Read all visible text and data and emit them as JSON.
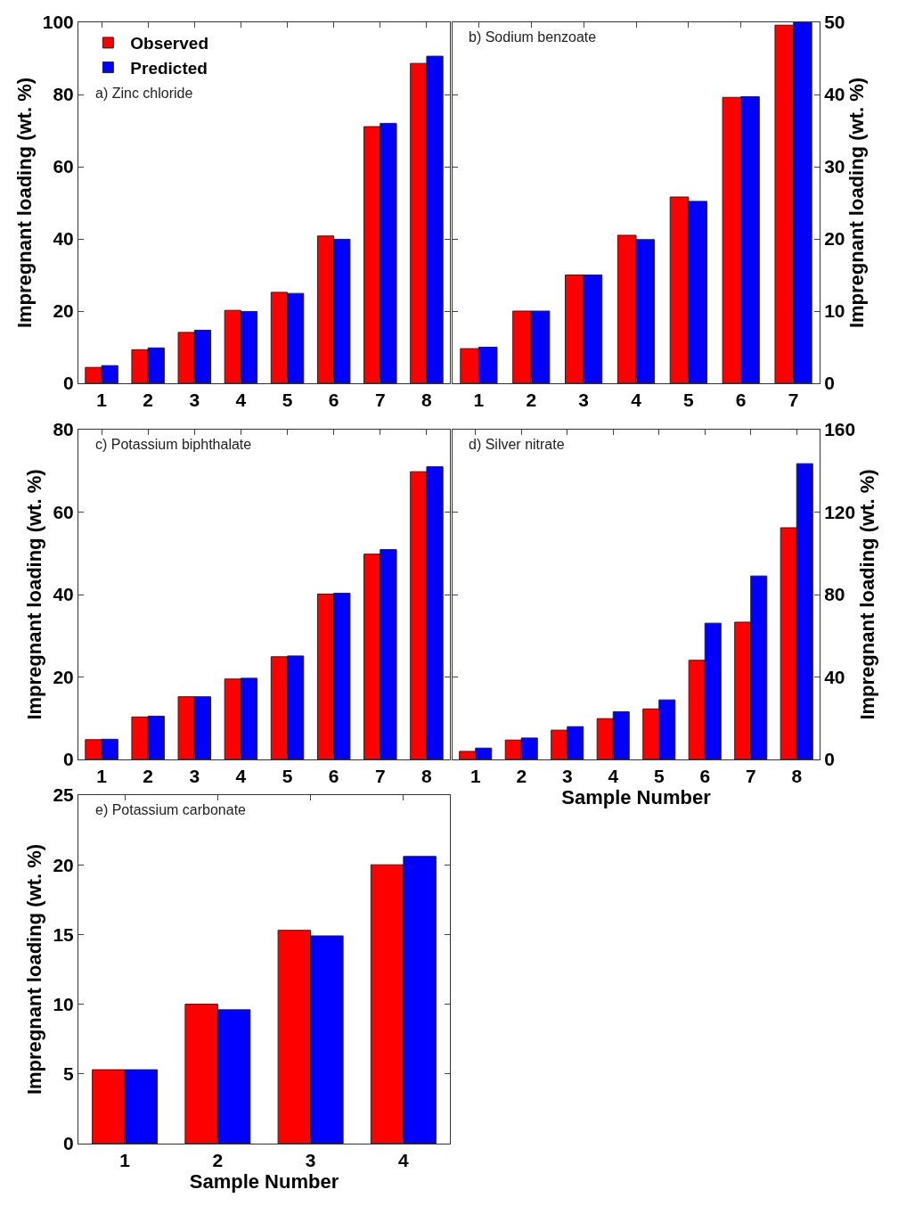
{
  "chart_data": [
    {
      "type": "bar",
      "categories": [
        "1",
        "2",
        "3",
        "4",
        "5",
        "6",
        "7",
        "8"
      ],
      "ylabel": "Impregnant loading (wt. %)",
      "ylim": [
        0,
        100
      ],
      "yticks": [
        0,
        20,
        40,
        60,
        80,
        100
      ],
      "legend": "top left",
      "annotations": [
        "a) Zinc chloride"
      ],
      "series": [
        {
          "name": "Observed",
          "color": "#ff0000",
          "values": [
            4.4,
            9.3,
            14.1,
            20.2,
            25.2,
            40.8,
            71.1,
            88.6
          ]
        },
        {
          "name": "Predicted",
          "color": "#0000ff",
          "values": [
            4.9,
            9.8,
            14.7,
            19.9,
            24.9,
            39.9,
            72.0,
            90.6
          ]
        }
      ]
    },
    {
      "type": "bar",
      "categories": [
        "1",
        "2",
        "3",
        "4",
        "5",
        "6",
        "7"
      ],
      "y2label": "Impregnant loading (wt. %)",
      "y2lim": [
        0,
        50
      ],
      "y2ticks": [
        0,
        10,
        20,
        30,
        40,
        50
      ],
      "annotations": [
        "b) Sodium benzoate"
      ],
      "series": [
        {
          "color": "#ff0000",
          "axis": "y2",
          "values": [
            4.8,
            10.0,
            15.0,
            20.5,
            25.8,
            39.6,
            49.6
          ]
        },
        {
          "color": "#0000ff",
          "axis": "y2",
          "values": [
            5.0,
            10.0,
            15.0,
            19.9,
            25.2,
            39.7,
            50.0
          ]
        }
      ]
    },
    {
      "type": "bar",
      "categories": [
        "1",
        "2",
        "3",
        "4",
        "5",
        "6",
        "7",
        "8"
      ],
      "ylabel": "Impregnant loading (wt. %)",
      "ylim": [
        0,
        80
      ],
      "yticks": [
        0,
        20,
        40,
        60,
        80
      ],
      "annotations": [
        "c) Potassium biphthalate"
      ],
      "series": [
        {
          "color": "#ff0000",
          "values": [
            4.8,
            10.3,
            15.2,
            19.5,
            24.9,
            40.1,
            49.8,
            69.8
          ]
        },
        {
          "color": "#0000ff",
          "values": [
            4.9,
            10.5,
            15.2,
            19.7,
            25.1,
            40.3,
            50.9,
            71.0
          ]
        }
      ]
    },
    {
      "type": "bar",
      "categories": [
        "1",
        "2",
        "3",
        "4",
        "5",
        "6",
        "7",
        "8"
      ],
      "xlabel": "Sample Number",
      "y2label": "Impregnant loading (wt. %)",
      "y2lim": [
        0,
        160
      ],
      "y2ticks": [
        0,
        40,
        80,
        120,
        160
      ],
      "annotations": [
        "d) Silver nitrate"
      ],
      "series": [
        {
          "color": "#ff0000",
          "axis": "y2",
          "values": [
            3.9,
            9.4,
            14.2,
            19.8,
            24.5,
            48.1,
            66.6,
            112.4
          ]
        },
        {
          "color": "#0000ff",
          "axis": "y2",
          "values": [
            5.5,
            10.4,
            15.9,
            23.1,
            28.9,
            66.1,
            89.0,
            143.5
          ]
        }
      ]
    },
    {
      "type": "bar",
      "categories": [
        "1",
        "2",
        "3",
        "4"
      ],
      "xlabel": "Sample Number",
      "ylabel": "Impregnant loading (wt. %)",
      "ylim": [
        0,
        25
      ],
      "yticks": [
        0,
        5,
        10,
        15,
        20,
        25
      ],
      "annotations": [
        "e) Potassium carbonate"
      ],
      "series": [
        {
          "color": "#ff0000",
          "values": [
            5.3,
            10.0,
            15.3,
            20.0
          ]
        },
        {
          "color": "#0000ff",
          "values": [
            5.3,
            9.6,
            14.9,
            20.6
          ]
        }
      ]
    }
  ]
}
